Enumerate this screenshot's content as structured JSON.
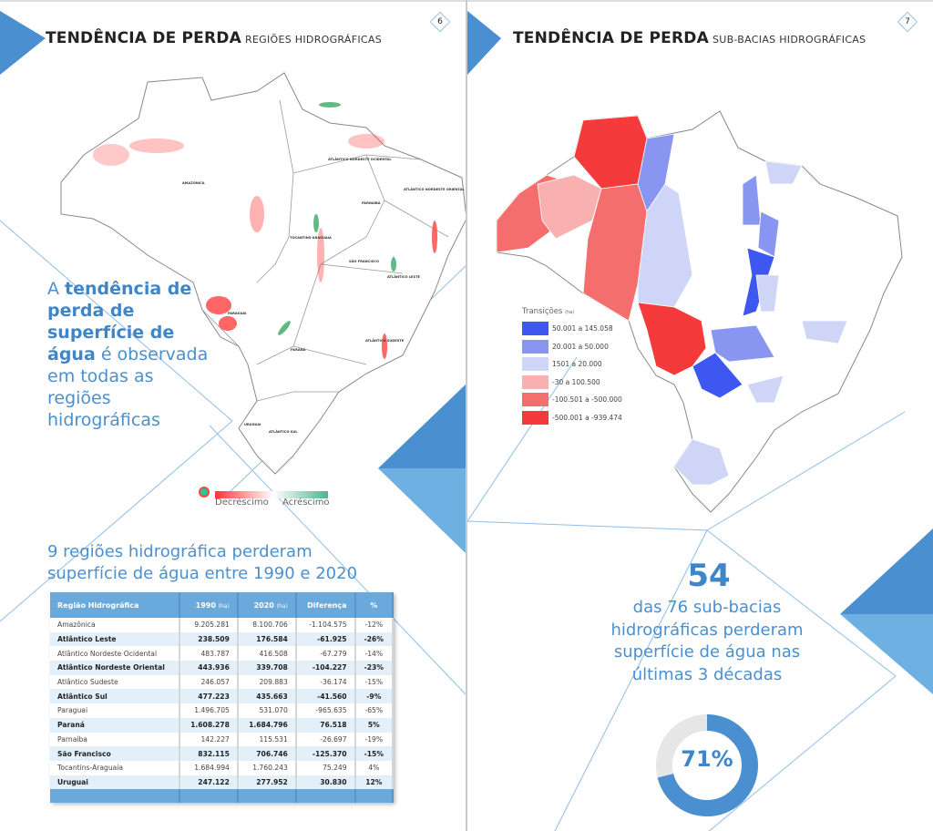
{
  "left_page": {
    "page_number": "6",
    "title": "TENDÊNCIA DE PERDA",
    "subtitle": "REGIÕES HIDROGRÁFICAS",
    "lead": {
      "pre": "A ",
      "bold": "tendência de perda de superfície de água",
      "post": " é observada em todas as regiões hidrográficas"
    },
    "map_labels": [
      "AMAZÔNICA",
      "ATLÂNTICO NORDESTE OCIDENTAL",
      "PARNAÍBA",
      "ATLÂNTICO NORDESTE ORIENTAL",
      "TOCANTINS-ARAGUAIA",
      "SÃO FRANCISCO",
      "ATLÂNTICO LESTE",
      "PARAGUAI",
      "PARANÁ",
      "ATLÂNTICO SUDESTE",
      "URUGUAI",
      "ATLÂNTICO SUL"
    ],
    "legend": {
      "decrease": "Decréscimo",
      "increase": "Acréscimo",
      "decrease_color": "#ff3333",
      "increase_color": "#4cb58a"
    },
    "table_heading": "9 regiões hidrográfica perderam superfície de água entre 1990 e 2020",
    "table": {
      "headers": [
        "Região Hidrográfica",
        "1990",
        "2020",
        "Diferença",
        "%"
      ],
      "unit": "(ha)",
      "rows": [
        [
          "Amazônica",
          "9.205.281",
          "8.100.706",
          "-1.104.575",
          "-12%"
        ],
        [
          "Atlântico Leste",
          "238.509",
          "176.584",
          "-61.925",
          "-26%"
        ],
        [
          "Atlântico Nordeste Ocidental",
          "483.787",
          "416.508",
          "-67.279",
          "-14%"
        ],
        [
          "Atlântico Nordeste Oriental",
          "443.936",
          "339.708",
          "-104.227",
          "-23%"
        ],
        [
          "Atlântico Sudeste",
          "246.057",
          "209.883",
          "-36.174",
          "-15%"
        ],
        [
          "Atlântico Sul",
          "477.223",
          "435.663",
          "-41.560",
          "-9%"
        ],
        [
          "Paraguai",
          "1.496.705",
          "531.070",
          "-965.635",
          "-65%"
        ],
        [
          "Paraná",
          "1.608.278",
          "1.684.796",
          "76.518",
          "5%"
        ],
        [
          "Parnaíba",
          "142.227",
          "115.531",
          "-26.697",
          "-19%"
        ],
        [
          "São Francisco",
          "832.115",
          "706.746",
          "-125.370",
          "-15%"
        ],
        [
          "Tocantins-Araguaia",
          "1.684.994",
          "1.760.243",
          "75.249",
          "4%"
        ],
        [
          "Uruguai",
          "247.122",
          "277.952",
          "30.830",
          "12%"
        ]
      ]
    }
  },
  "right_page": {
    "page_number": "7",
    "title": "TENDÊNCIA DE PERDA",
    "subtitle": "SUB-BACIAS HIDROGRÁFICAS",
    "legend": {
      "title": "Transições",
      "unit": "(ha)",
      "items": [
        {
          "label": "50.001 a 145.058",
          "color": "#3d57f0"
        },
        {
          "label": "20.001 a 50.000",
          "color": "#8896f2"
        },
        {
          "label": "1501 a 20.000",
          "color": "#cfd5f7"
        },
        {
          "label": "-30 a 100.500",
          "color": "#f9b0b0"
        },
        {
          "label": "-100.501 a -500.000",
          "color": "#f56e6e"
        },
        {
          "label": "-500.001 a -939.474",
          "color": "#f43a3a"
        }
      ]
    },
    "stat_number": "54",
    "stat_text": "das 76 sub-bacias hidrográficas perderam superfície de água nas últimas 3 décadas",
    "donut_percent": 71,
    "donut_label": "71%",
    "accent": "#4a90d0"
  }
}
